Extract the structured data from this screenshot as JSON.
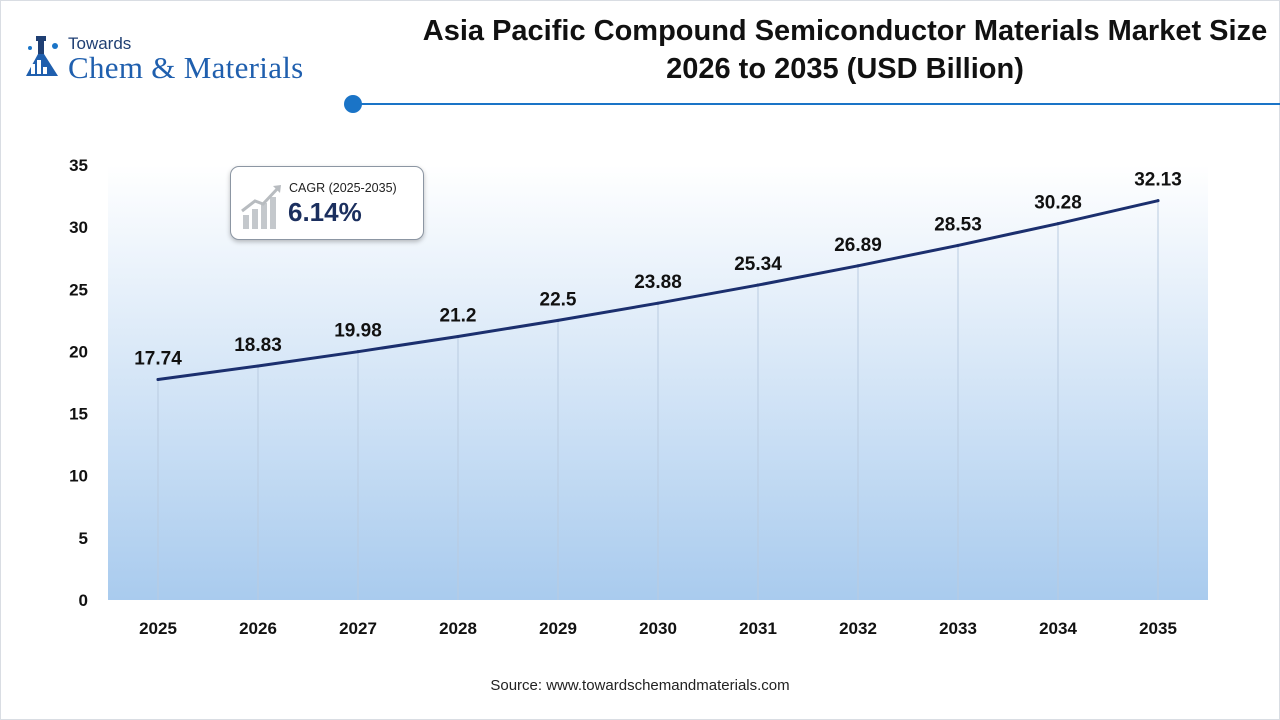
{
  "brand": {
    "towards": "Towards",
    "name": "Chem & Materials"
  },
  "title": "Asia Pacific Compound Semiconductor Materials Market Size 2026 to 2035 (USD Billion)",
  "cagr": {
    "label": "CAGR (2025-2035)",
    "value": "6.14%"
  },
  "source": "Source: www.towardschemandmaterials.com",
  "colors": {
    "line": "#1b2f6e",
    "accent": "#1a74c7",
    "area_top": "#ffffff",
    "area_bottom": "#a9cbee"
  },
  "chart_data": {
    "type": "area",
    "title": "Asia Pacific Compound Semiconductor Materials Market Size 2026 to 2035 (USD Billion)",
    "xlabel": "",
    "ylabel": "",
    "categories": [
      "2025",
      "2026",
      "2027",
      "2028",
      "2029",
      "2030",
      "2031",
      "2032",
      "2033",
      "2034",
      "2035"
    ],
    "values": [
      17.74,
      18.83,
      19.98,
      21.2,
      22.5,
      23.88,
      25.34,
      26.89,
      28.53,
      30.28,
      32.13
    ],
    "value_labels": [
      "17.74",
      "18.83",
      "19.98",
      "21.2",
      "22.5",
      "23.88",
      "25.34",
      "26.89",
      "28.53",
      "30.28",
      "32.13"
    ],
    "ylim": [
      0,
      35
    ],
    "yticks": [
      0,
      5,
      10,
      15,
      20,
      25,
      30,
      35
    ],
    "grid": "vertical",
    "legend": "none"
  }
}
